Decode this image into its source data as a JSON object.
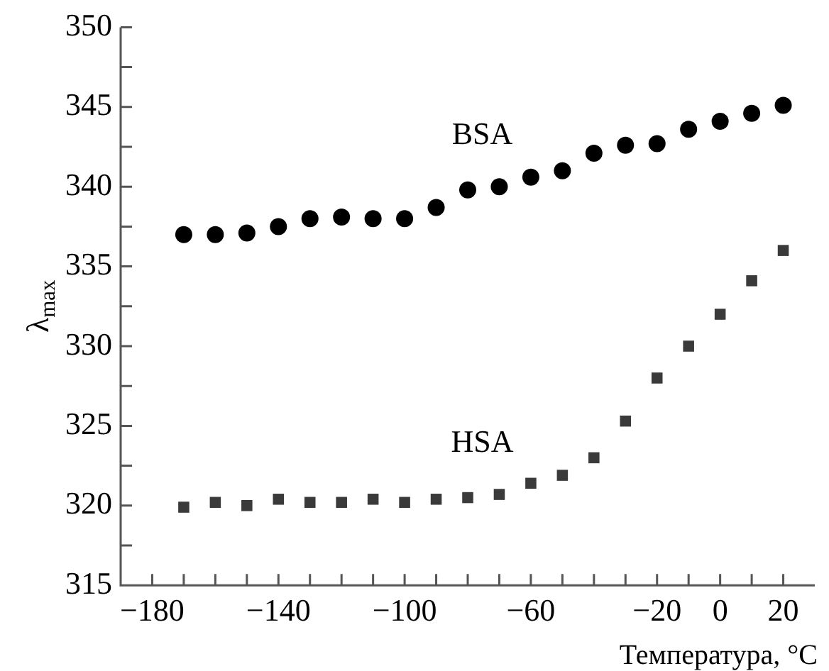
{
  "chart_data": {
    "type": "scatter",
    "xlabel": "Температура, °C",
    "ylabel": "λ$_{max}$",
    "xlim": [
      -190,
      30
    ],
    "ylim": [
      315,
      350
    ],
    "xticks": [
      {
        "value": -180,
        "label": "−180"
      },
      {
        "value": -170,
        "label": null
      },
      {
        "value": -160,
        "label": null
      },
      {
        "value": -150,
        "label": null
      },
      {
        "value": -140,
        "label": "−140"
      },
      {
        "value": -130,
        "label": null
      },
      {
        "value": -120,
        "label": null
      },
      {
        "value": -110,
        "label": null
      },
      {
        "value": -100,
        "label": "−100"
      },
      {
        "value": -90,
        "label": null
      },
      {
        "value": -80,
        "label": null
      },
      {
        "value": -70,
        "label": null
      },
      {
        "value": -60,
        "label": "−60"
      },
      {
        "value": -50,
        "label": null
      },
      {
        "value": -40,
        "label": null
      },
      {
        "value": -30,
        "label": null
      },
      {
        "value": -20,
        "label": "−20"
      },
      {
        "value": -10,
        "label": null
      },
      0,
      {
        "value": 10,
        "label": null
      },
      20
    ],
    "yticks": [
      315,
      {
        "value": 317.5,
        "label": null
      },
      320,
      {
        "value": 322.5,
        "label": null
      },
      325,
      {
        "value": 327.5,
        "label": null
      },
      330,
      {
        "value": 332.5,
        "label": null
      },
      335,
      {
        "value": 337.5,
        "label": null
      },
      340,
      {
        "value": 342.5,
        "label": null
      },
      345,
      {
        "value": 347.5,
        "label": null
      },
      350
    ],
    "x": [
      -170,
      -160,
      -150,
      -140,
      -130,
      -120,
      -110,
      -100,
      -90,
      -80,
      -70,
      -60,
      -50,
      -40,
      -30,
      -20,
      -10,
      0,
      10,
      20
    ],
    "series": [
      {
        "name": "BSA",
        "color": "#000000",
        "marker": "circle",
        "values": [
          337.0,
          337.0,
          337.1,
          337.5,
          338.0,
          338.1,
          338.0,
          338.0,
          338.7,
          339.8,
          340.0,
          340.6,
          341.0,
          342.1,
          342.6,
          342.7,
          343.6,
          344.1,
          344.6,
          345.1
        ]
      },
      {
        "name": "HSA",
        "color": "#3a3a3a",
        "marker": "square",
        "values": [
          319.9,
          320.2,
          320.0,
          320.4,
          320.2,
          320.2,
          320.4,
          320.2,
          320.4,
          320.5,
          320.7,
          321.4,
          321.9,
          323.0,
          325.3,
          328.0,
          330.0,
          332.0,
          334.1,
          336.0
        ]
      }
    ],
    "grid": false,
    "legend": false
  }
}
